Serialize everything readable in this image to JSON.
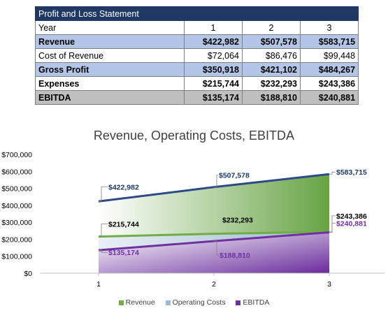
{
  "table": {
    "title": "Profit and Loss Statement",
    "header": [
      "Year",
      "1",
      "2",
      "3"
    ],
    "rows": [
      {
        "label": "Revenue",
        "values": [
          "$422,982",
          "$507,578",
          "$583,715"
        ]
      },
      {
        "label": "Cost of Revenue",
        "values": [
          "$72,064",
          "$86,476",
          "$99,448"
        ]
      },
      {
        "label": "Gross Profit",
        "values": [
          "$350,918",
          "$421,102",
          "$484,267"
        ]
      },
      {
        "label": "Expenses",
        "values": [
          "$215,744",
          "$232,293",
          "$243,386"
        ]
      },
      {
        "label": "EBITDA",
        "values": [
          "$135,174",
          "$188,810",
          "$240,881"
        ]
      }
    ],
    "colors": {
      "title_bg": "#1f3864",
      "highlight_bg": "#b4c6e7",
      "ebitda_bg": "#bfbfbf"
    }
  },
  "chart_data": {
    "type": "area",
    "title": "Revenue, Operating Costs, EBITDA",
    "categories": [
      "1",
      "2",
      "3"
    ],
    "y_ticks": [
      "$0",
      "$100,000",
      "$200,000",
      "$300,000",
      "$400,000",
      "$500,000",
      "$600,000",
      "$700,000"
    ],
    "ylim": [
      0,
      700000
    ],
    "grid": false,
    "legend_position": "bottom",
    "series": [
      {
        "name": "Revenue",
        "values": [
          422982,
          507578,
          583715
        ],
        "labels": [
          "$422,982",
          "$507,578",
          "$583,715"
        ],
        "color": "#2e4a87",
        "fill": "#70ad47",
        "label_color": "#1f3864"
      },
      {
        "name": "Operating Costs",
        "values": [
          215744,
          232293,
          243386
        ],
        "labels": [
          "$215,744",
          "$232,293",
          "$243,386"
        ],
        "color": "#70ad47",
        "fill": "#5b9bd5",
        "label_color": "#000000"
      },
      {
        "name": "EBITDA",
        "values": [
          135174,
          188810,
          240881
        ],
        "labels": [
          "$135,174",
          "$188,810",
          "$240,881"
        ],
        "color": "#7030a0",
        "fill": "#7030a0",
        "label_color": "#7030a0"
      }
    ]
  }
}
